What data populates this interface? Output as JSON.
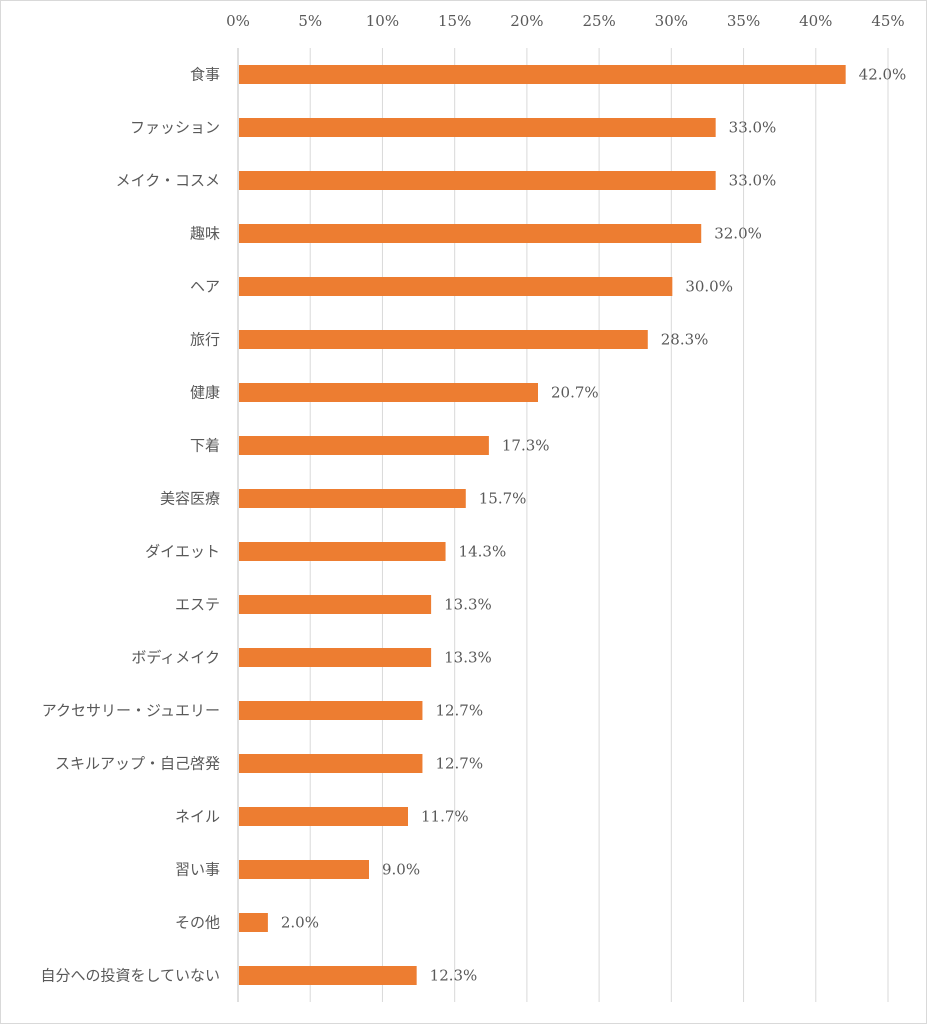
{
  "chart_data": {
    "type": "bar",
    "orientation": "horizontal",
    "title": "",
    "xlabel": "",
    "ylabel": "",
    "xlim": [
      0,
      45
    ],
    "x_ticks": [
      "0%",
      "5%",
      "10%",
      "15%",
      "20%",
      "25%",
      "30%",
      "35%",
      "40%",
      "45%"
    ],
    "x_tick_values": [
      0,
      5,
      10,
      15,
      20,
      25,
      30,
      35,
      40,
      45
    ],
    "axis_position": "top",
    "grid": true,
    "bar_color": "#ED7D31",
    "categories": [
      "食事",
      "ファッション",
      "メイク・コスメ",
      "趣味",
      "ヘア",
      "旅行",
      "健康",
      "下着",
      "美容医療",
      "ダイエット",
      "エステ",
      "ボディメイク",
      "アクセサリー・ジュエリー",
      "スキルアップ・自己啓発",
      "ネイル",
      "習い事",
      "その他",
      "自分への投資をしていない"
    ],
    "values": [
      42.0,
      33.0,
      33.0,
      32.0,
      30.0,
      28.3,
      20.7,
      17.3,
      15.7,
      14.3,
      13.3,
      13.3,
      12.7,
      12.7,
      11.7,
      9.0,
      2.0,
      12.3
    ],
    "data_labels": [
      "42.0%",
      "33.0%",
      "33.0%",
      "32.0%",
      "30.0%",
      "28.3%",
      "20.7%",
      "17.3%",
      "15.7%",
      "14.3%",
      "13.3%",
      "13.3%",
      "12.7%",
      "12.7%",
      "11.7%",
      "9.0%",
      "2.0%",
      "12.3%"
    ]
  }
}
